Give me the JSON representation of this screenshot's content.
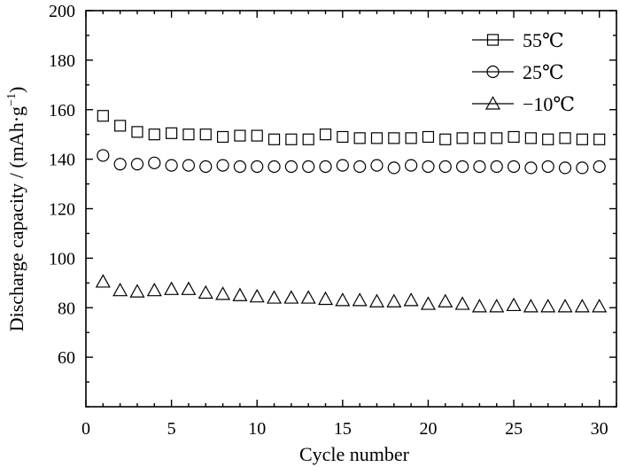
{
  "chart_data": {
    "type": "scatter",
    "xlabel": "Cycle number",
    "ylabel_main": "Discharge capacity / (mAh·g",
    "ylabel_sup": "−1",
    "ylabel_close": ")",
    "xlim": [
      0,
      31
    ],
    "ylim": [
      40,
      200
    ],
    "x_ticks": [
      0,
      5,
      10,
      15,
      20,
      25,
      30
    ],
    "y_ticks": [
      60,
      80,
      100,
      120,
      140,
      160,
      180,
      200
    ],
    "grid": false,
    "legend_position": "top-right",
    "x": [
      1,
      2,
      3,
      4,
      5,
      6,
      7,
      8,
      9,
      10,
      11,
      12,
      13,
      14,
      15,
      16,
      17,
      18,
      19,
      20,
      21,
      22,
      23,
      24,
      25,
      26,
      27,
      28,
      29,
      30
    ],
    "series": [
      {
        "name": "55℃",
        "marker": "square",
        "values": [
          157.5,
          153.5,
          151,
          150,
          150.5,
          150,
          150,
          149,
          149.5,
          149.5,
          148,
          148,
          148,
          150,
          149,
          148.5,
          148.5,
          148.5,
          148.5,
          149,
          148,
          148.5,
          148.5,
          148.5,
          149,
          148.5,
          148,
          148.5,
          148,
          148
        ]
      },
      {
        "name": "25℃",
        "marker": "circle",
        "values": [
          141.5,
          138,
          138,
          138.5,
          137.5,
          137.5,
          137,
          137.5,
          137,
          137,
          137,
          137,
          137,
          137,
          137.5,
          137,
          137.5,
          136.5,
          137.5,
          137,
          137,
          137,
          137,
          137,
          137,
          136.5,
          137,
          136.5,
          136.5,
          137
        ]
      },
      {
        "name": "−10℃",
        "marker": "triangle",
        "values": [
          90.5,
          87,
          86.5,
          87,
          87.5,
          87.5,
          86,
          85.5,
          85,
          84.5,
          84,
          84,
          84,
          83.5,
          83,
          83,
          82.5,
          82.5,
          83,
          81.5,
          82.5,
          81.5,
          80.5,
          80.5,
          81,
          80.5,
          80.5,
          80.5,
          80.5,
          80.5
        ]
      }
    ]
  }
}
